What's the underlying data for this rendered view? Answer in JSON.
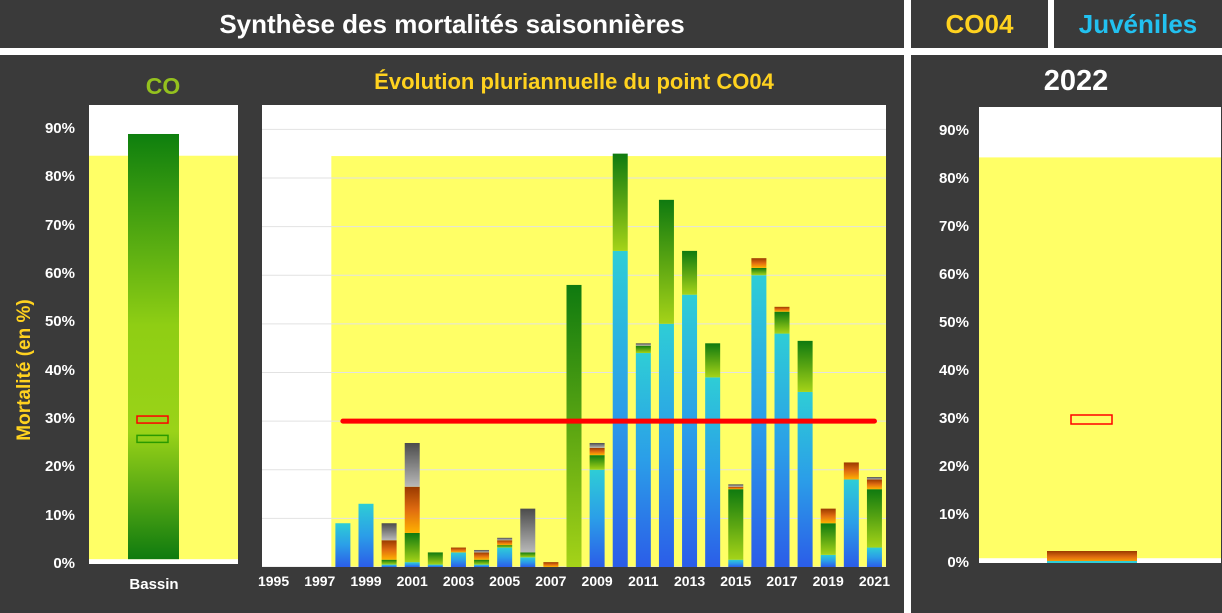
{
  "header": {
    "title": "Synthèse des mortalités saisonnières",
    "site": "CO04",
    "category": "Juvéniles"
  },
  "colors": {
    "site": "#ffd21f",
    "category": "#22c1f0",
    "basin": "#94c11e",
    "plot_bg": "#ffff66",
    "threshold": "#ff0000"
  },
  "left_panel": {
    "title": "CO",
    "ylabel": "Mortalité (en %)",
    "xlabel": "Bassin"
  },
  "center_panel": {
    "title": "Évolution pluriannuelle du point CO04"
  },
  "right_panel": {
    "title": "2022"
  },
  "chart_data": [
    {
      "type": "bar",
      "title": "CO",
      "ylabel": "Mortalité (en %)",
      "categories": [
        "Bassin"
      ],
      "values": [
        89
      ],
      "markers": [
        {
          "color": "red",
          "value": 30
        },
        {
          "color": "green",
          "value": 26
        }
      ],
      "ylim": [
        0,
        95
      ],
      "yticks": [
        "0%",
        "10%",
        "20%",
        "30%",
        "40%",
        "50%",
        "60%",
        "70%",
        "80%",
        "90%"
      ],
      "band": [
        1,
        84.5
      ]
    },
    {
      "type": "bar",
      "title": "Évolution pluriannuelle du point CO04",
      "stacked": true,
      "x": [
        1998,
        1999,
        2000,
        2001,
        2002,
        2003,
        2004,
        2005,
        2006,
        2007,
        2008,
        2009,
        2010,
        2011,
        2012,
        2013,
        2014,
        2015,
        2016,
        2017,
        2018,
        2019,
        2020,
        2021
      ],
      "xticks": [
        "1995",
        "1997",
        "1999",
        "2001",
        "2003",
        "2005",
        "2007",
        "2009",
        "2011",
        "2013",
        "2015",
        "2017",
        "2019",
        "2021"
      ],
      "xlim": [
        1994.5,
        2021.5
      ],
      "ylim": [
        0,
        95
      ],
      "band": [
        1,
        84.5
      ],
      "band_start_year": 1997.5,
      "threshold": 30,
      "threshold_range": [
        1998,
        2021
      ],
      "series": [
        {
          "values": [
            9,
            13,
            0.5,
            1,
            0.5,
            3,
            0.5,
            4,
            2,
            0,
            0,
            20,
            65,
            44,
            50,
            56,
            39,
            1.5,
            60,
            48,
            36,
            2.5,
            18,
            4
          ]
        },
        {
          "values": [
            0,
            0,
            1,
            6,
            2.5,
            0,
            1,
            0.5,
            1,
            0,
            58,
            3,
            20,
            1.5,
            25.5,
            9,
            7,
            14.5,
            1.5,
            4.5,
            10.5,
            6.5,
            0,
            12
          ]
        },
        {
          "values": [
            0,
            0,
            4,
            9.5,
            0,
            1,
            1.5,
            1,
            0,
            1,
            0,
            1.5,
            0,
            0,
            0,
            0,
            0,
            0.5,
            2,
            1,
            0,
            3,
            3.5,
            2
          ]
        },
        {
          "values": [
            0,
            0,
            3.5,
            9,
            0,
            0,
            0.5,
            0.5,
            9,
            0,
            0,
            1,
            0,
            0.5,
            0,
            0,
            0,
            0.5,
            0,
            0,
            0,
            0,
            0,
            0.5
          ]
        }
      ]
    },
    {
      "type": "bar",
      "title": "2022",
      "categories": [
        "2022"
      ],
      "values": [
        2.5
      ],
      "markers": [
        {
          "color": "red",
          "value": 30
        }
      ],
      "ylim": [
        0,
        95
      ],
      "yticks": [
        "0%",
        "10%",
        "20%",
        "30%",
        "40%",
        "50%",
        "60%",
        "70%",
        "80%",
        "90%"
      ],
      "band": [
        1,
        84.5
      ]
    }
  ]
}
